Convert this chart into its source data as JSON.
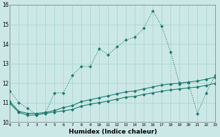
{
  "xlabel": "Humidex (Indice chaleur)",
  "background_color": "#cce8e6",
  "grid_color": "#aad4d0",
  "line_color": "#1a7a6e",
  "xlim": [
    0,
    23
  ],
  "ylim": [
    10,
    16
  ],
  "xticks": [
    0,
    1,
    2,
    3,
    4,
    5,
    6,
    7,
    8,
    9,
    10,
    11,
    12,
    13,
    14,
    15,
    16,
    17,
    18,
    19,
    20,
    21,
    22,
    23
  ],
  "yticks": [
    10,
    11,
    12,
    13,
    14,
    15,
    16
  ],
  "series1_y": [
    11.6,
    11.0,
    10.7,
    10.35,
    10.5,
    11.5,
    11.5,
    12.4,
    12.85,
    12.85,
    13.75,
    13.45,
    13.85,
    14.2,
    14.35,
    14.8,
    15.7,
    14.9,
    13.6,
    11.95,
    12.0,
    10.45,
    11.5,
    12.4
  ],
  "series2_y": [
    11.05,
    10.55,
    10.45,
    10.45,
    10.5,
    10.6,
    10.75,
    10.85,
    11.05,
    11.15,
    11.25,
    11.35,
    11.45,
    11.55,
    11.6,
    11.7,
    11.8,
    11.9,
    11.95,
    12.0,
    12.05,
    12.1,
    12.2,
    12.3
  ],
  "series3_y": [
    10.95,
    10.5,
    10.35,
    10.38,
    10.45,
    10.52,
    10.58,
    10.65,
    10.82,
    10.92,
    11.0,
    11.08,
    11.18,
    11.28,
    11.32,
    11.42,
    11.5,
    11.58,
    11.65,
    11.7,
    11.75,
    11.8,
    11.88,
    11.98
  ]
}
